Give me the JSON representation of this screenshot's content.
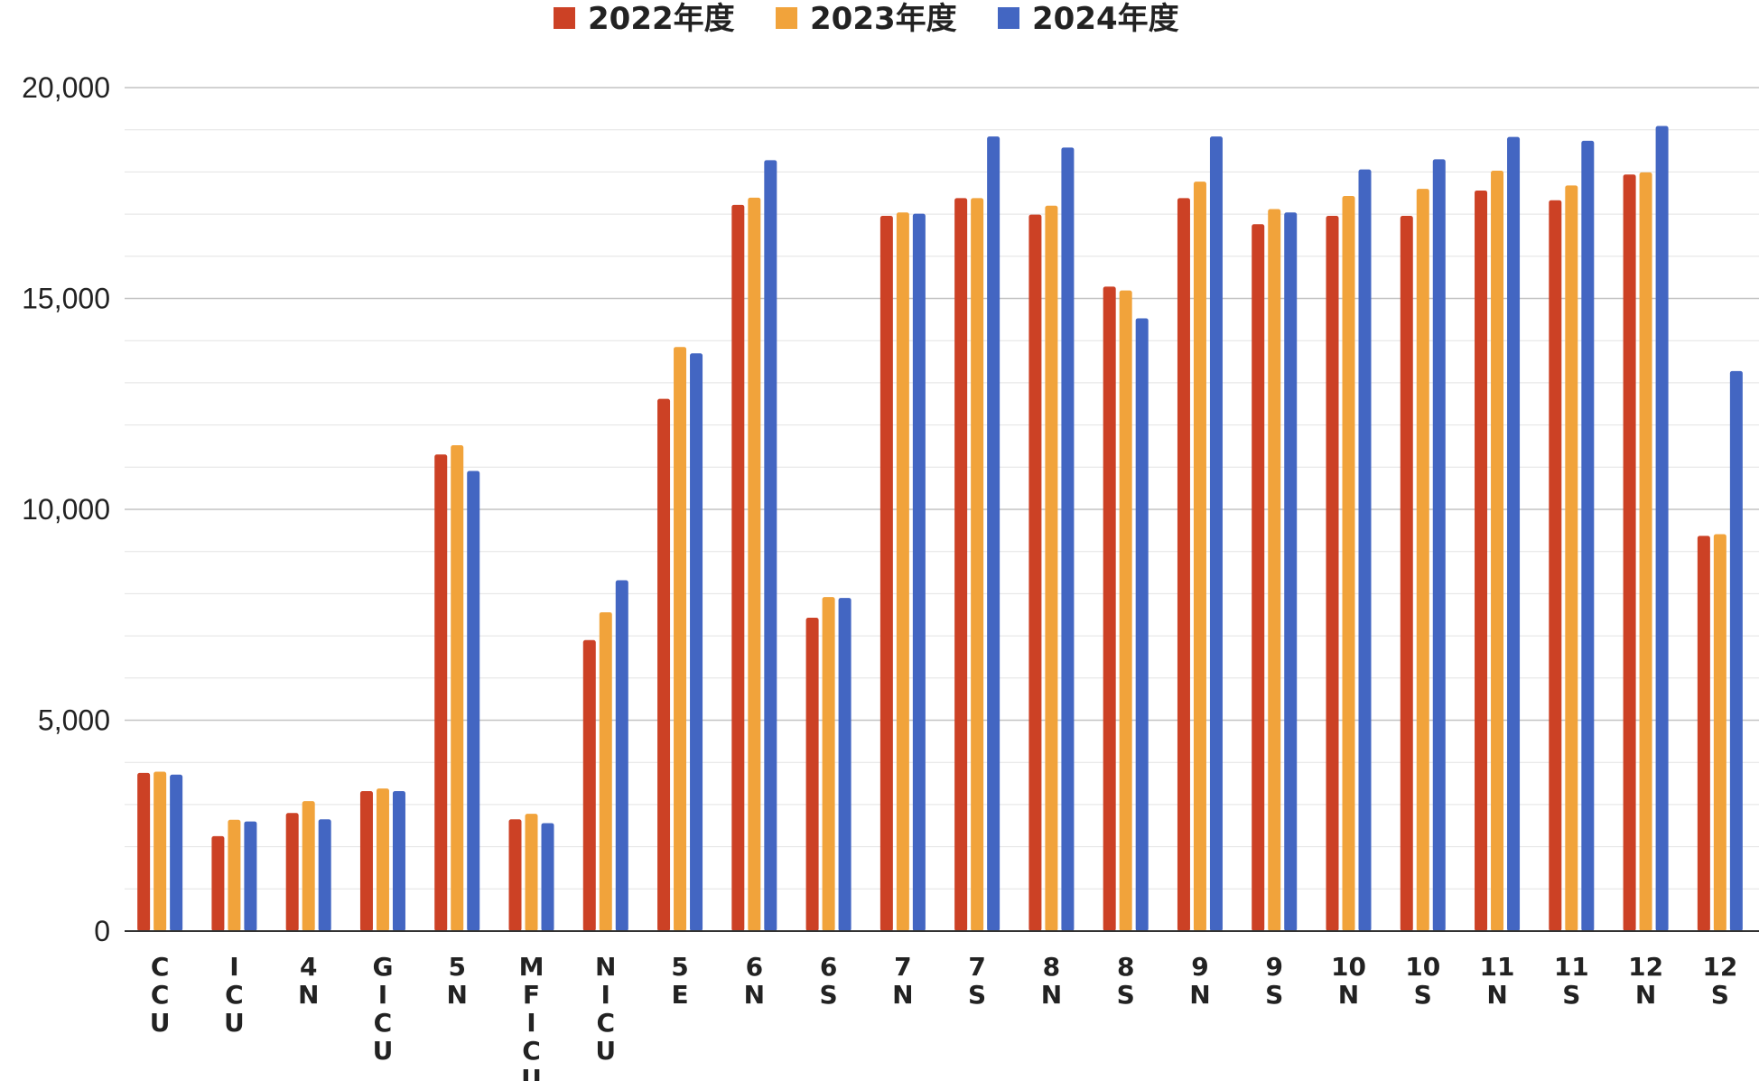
{
  "chart_data": {
    "type": "bar",
    "title": "",
    "xlabel": "",
    "ylabel": "",
    "ylim": [
      0,
      20000
    ],
    "yticks": [
      0,
      5000,
      10000,
      15000,
      20000
    ],
    "ytick_labels": [
      "0",
      "5,000",
      "10,000",
      "15,000",
      "20,000"
    ],
    "grid": true,
    "legend_position": "top-center",
    "categories": [
      "CCU",
      "ICU",
      "4N",
      "GICU",
      "5N",
      "MFICU",
      "NICU",
      "5E",
      "6N",
      "6S",
      "7N",
      "7S",
      "8N",
      "8S",
      "9N",
      "9S",
      "10N",
      "10S",
      "11N",
      "11S",
      "12N",
      "12S"
    ],
    "category_label_lines": [
      [
        "C",
        "C",
        "U"
      ],
      [
        "I",
        "C",
        "U"
      ],
      [
        "4",
        "N"
      ],
      [
        "G",
        "I",
        "C",
        "U"
      ],
      [
        "5",
        "N"
      ],
      [
        "M",
        "F",
        "I",
        "C",
        "U"
      ],
      [
        "N",
        "I",
        "C",
        "U"
      ],
      [
        "5",
        "E"
      ],
      [
        "6",
        "N"
      ],
      [
        "6",
        "S"
      ],
      [
        "7",
        "N"
      ],
      [
        "7",
        "S"
      ],
      [
        "8",
        "N"
      ],
      [
        "8",
        "S"
      ],
      [
        "9",
        "N"
      ],
      [
        "9",
        "S"
      ],
      [
        "10",
        "N"
      ],
      [
        "10",
        "S"
      ],
      [
        "11",
        "N"
      ],
      [
        "11",
        "S"
      ],
      [
        "12",
        "N"
      ],
      [
        "12",
        "S"
      ]
    ],
    "series": [
      {
        "name": "2022年度",
        "color": "#cc4125",
        "values": [
          3750,
          2250,
          2800,
          3320,
          11300,
          2650,
          6900,
          12620,
          17220,
          7430,
          16960,
          17380,
          16990,
          15280,
          17380,
          16760,
          16960,
          16960,
          17560,
          17330,
          17940,
          9370
        ]
      },
      {
        "name": "2023年度",
        "color": "#f1a33b",
        "values": [
          3780,
          2640,
          3080,
          3380,
          11520,
          2780,
          7560,
          13850,
          17390,
          7920,
          17040,
          17380,
          17200,
          15190,
          17770,
          17120,
          17430,
          17600,
          18030,
          17680,
          17990,
          9410
        ]
      },
      {
        "name": "2024年度",
        "color": "#4366c2",
        "values": [
          3710,
          2600,
          2650,
          3320,
          10910,
          2560,
          8320,
          13700,
          18280,
          7900,
          17010,
          18840,
          18580,
          14530,
          18840,
          17040,
          18060,
          18300,
          18830,
          18740,
          19090,
          13280
        ]
      }
    ]
  }
}
